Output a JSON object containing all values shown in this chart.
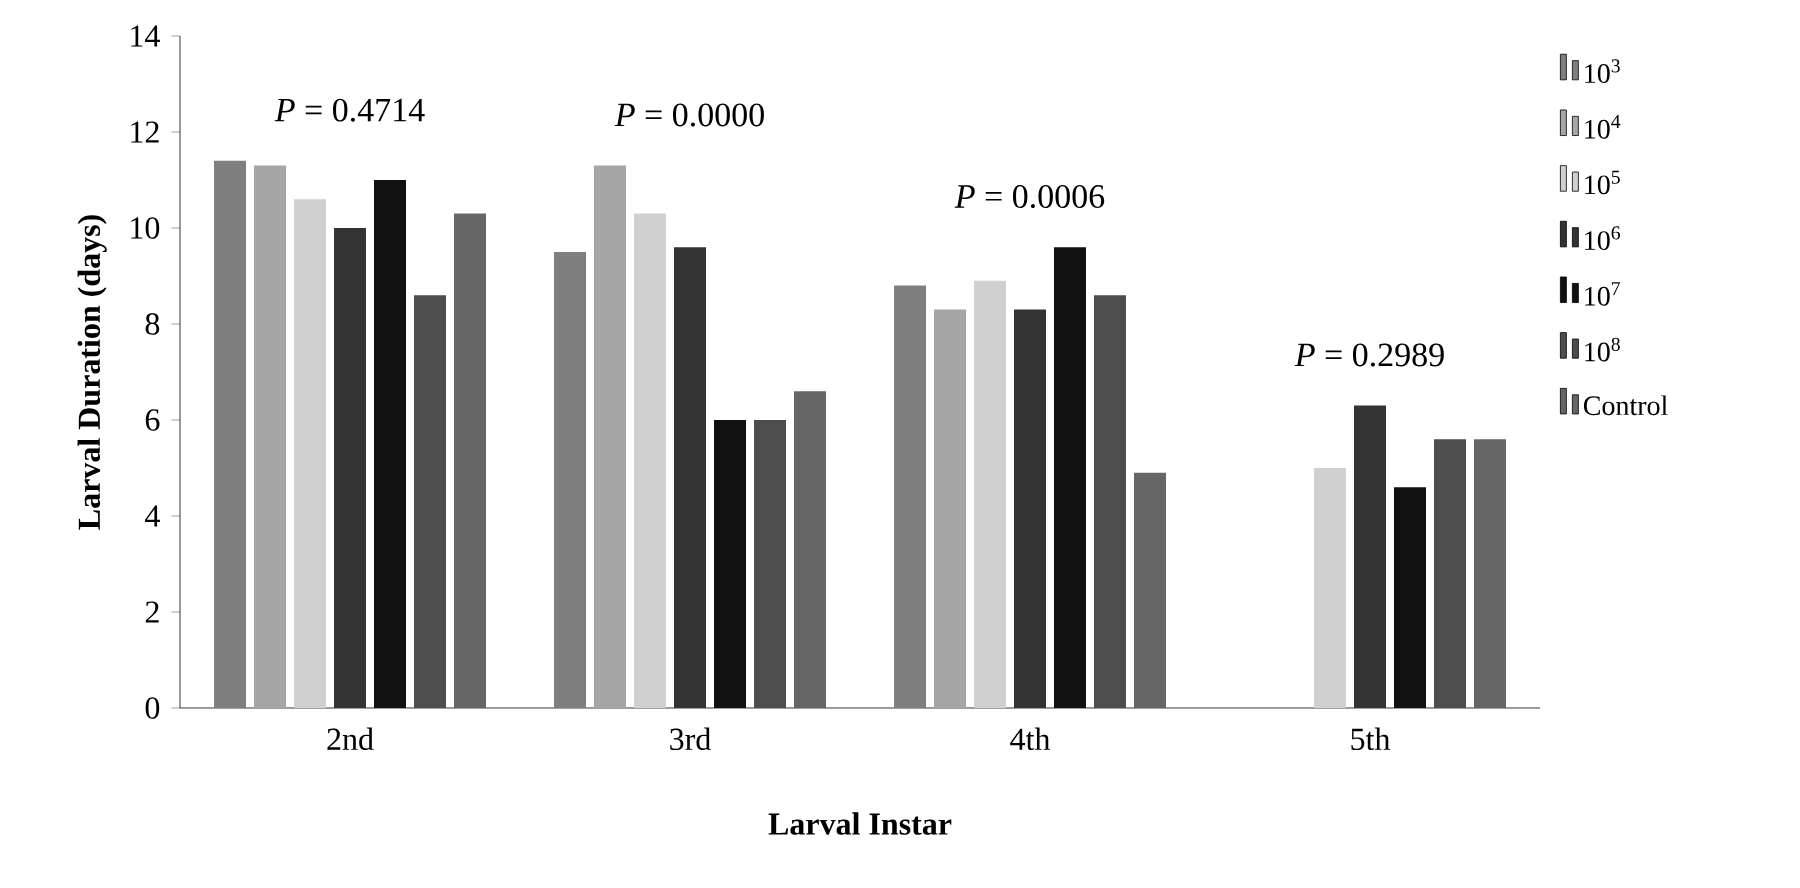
{
  "chart_data": {
    "type": "bar",
    "xlabel": "Larval Instar",
    "ylabel": "Larval Duration (days)",
    "categories": [
      "2nd",
      "3rd",
      "4th",
      "5th"
    ],
    "series": [
      {
        "name": "10$^{3}$",
        "color": "#7f7f7f",
        "values": [
          11.4,
          9.5,
          8.8,
          null
        ]
      },
      {
        "name": "10$^{4}$",
        "color": "#a6a6a6",
        "values": [
          11.3,
          11.3,
          8.3,
          null
        ]
      },
      {
        "name": "10$^{5}$",
        "color": "#d0d0d0",
        "values": [
          10.6,
          10.3,
          8.9,
          5.0
        ]
      },
      {
        "name": "10$^{6}$",
        "color": "#333333",
        "values": [
          10.0,
          9.6,
          8.3,
          6.3
        ]
      },
      {
        "name": "10$^{7}$",
        "color": "#111111",
        "values": [
          11.0,
          6.0,
          9.6,
          4.6
        ]
      },
      {
        "name": "10$^{8}$",
        "color": "#4d4d4d",
        "values": [
          8.6,
          6.0,
          8.6,
          5.6
        ]
      },
      {
        "name": "Control",
        "color": "#666666",
        "values": [
          10.3,
          6.6,
          4.9,
          5.6
        ]
      }
    ],
    "ylim": [
      0,
      14
    ],
    "yticks": [
      0,
      2,
      4,
      6,
      8,
      10,
      12,
      14
    ],
    "annotations": [
      "*P* = 0.4714",
      "*P* = 0.0000",
      "*P* = 0.0006",
      "*P* = 0.2989"
    ],
    "grid": false,
    "legend": "right"
  }
}
